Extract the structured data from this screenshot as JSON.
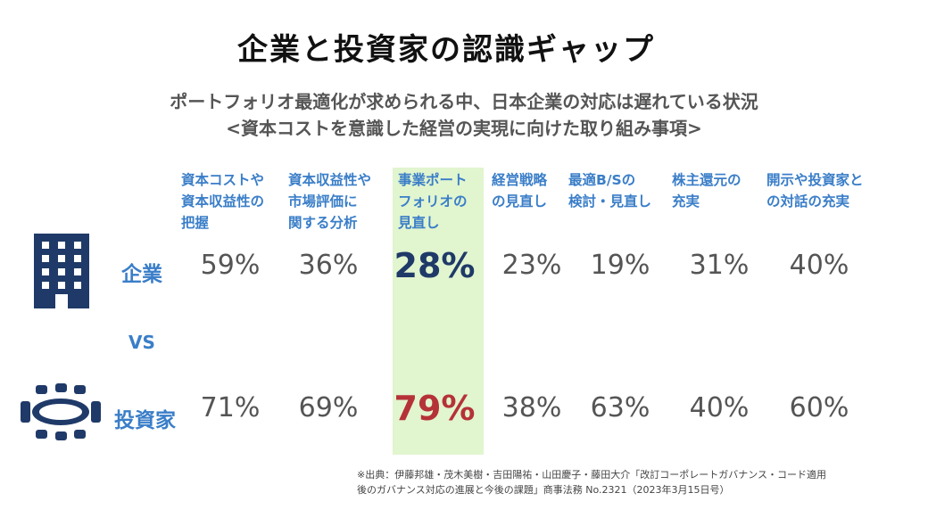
{
  "header": {
    "title": "企業と投資家の認識ギャップ",
    "subtitle_line1": "ポートフォリオ最適化が求められる中、日本企業の対応は遅れている状況",
    "subtitle_line2": "<資本コストを意識した経営の実現に向けた取り組み事項>"
  },
  "vs_label": "VS",
  "source_note": "※出典：伊藤邦雄・茂木美樹・吉田陽祐・山田慶子・藤田大介「改訂コーポレートガバナンス・コード適用\n後のガバナンス対応の進展と今後の課題」商事法務 No.2321（2023年3月15日号）",
  "colors": {
    "accent_blue": "#3a7ec8",
    "navy": "#1f3a68",
    "highlight_bg": "#e1f5cf",
    "highlight_investor": "#b53238",
    "value_gray": "#555555"
  },
  "icons": {
    "company": "office-building-icon",
    "investor": "meeting-table-icon"
  },
  "chart_data": {
    "type": "table",
    "highlighted_category_index": 2,
    "categories": [
      "資本コストや\n資本収益性の\n把握",
      "資本収益性や\n市場評価に\n関する分析",
      "事業ポート\nフォリオの\n見直し",
      "経営戦略\nの見直し",
      "最適B/Sの\n検討・見直し",
      "株主還元の\n充実",
      "開示や投資家と\nの対話の充実"
    ],
    "series": [
      {
        "name": "企業",
        "values": [
          59,
          36,
          28,
          23,
          19,
          31,
          40
        ],
        "labels": [
          "59%",
          "36%",
          "28%",
          "23%",
          "19%",
          "31%",
          "40%"
        ]
      },
      {
        "name": "投資家",
        "values": [
          71,
          69,
          79,
          38,
          63,
          40,
          60
        ],
        "labels": [
          "71%",
          "69%",
          "79%",
          "38%",
          "63%",
          "40%",
          "60%"
        ]
      }
    ]
  }
}
